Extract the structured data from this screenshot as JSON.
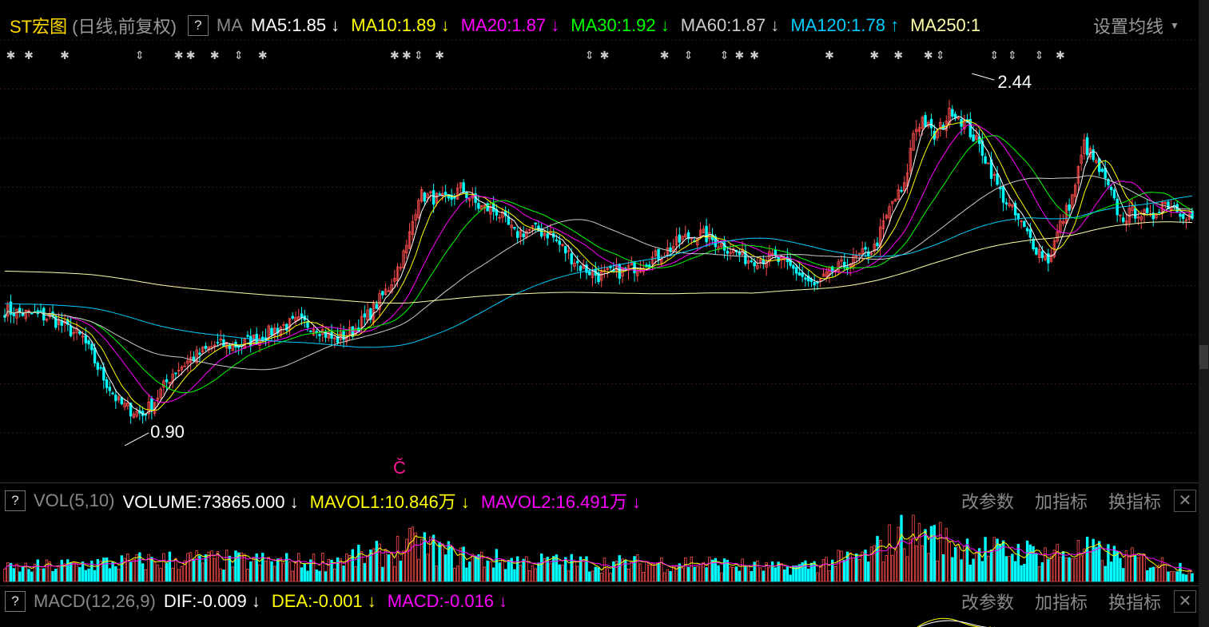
{
  "header": {
    "title": "ST宏图",
    "subtitle": "(日线,前复权)",
    "help": "?",
    "ma_label": "MA",
    "settings": "设置均线",
    "items": [
      {
        "label": "MA5:1.85",
        "arrow": "↓",
        "color": "#ffffff"
      },
      {
        "label": "MA10:1.89",
        "arrow": "↓",
        "color": "#ffff00"
      },
      {
        "label": "MA20:1.87",
        "arrow": "↓",
        "color": "#ff00ff"
      },
      {
        "label": "MA30:1.92",
        "arrow": "↓",
        "color": "#00ff00"
      },
      {
        "label": "MA60:1.87",
        "arrow": "↓",
        "color": "#cccccc"
      },
      {
        "label": "MA120:1.78",
        "arrow": "↑",
        "color": "#00ccff"
      },
      {
        "label": "MA250:1",
        "arrow": "",
        "color": "#ffffaa"
      }
    ]
  },
  "vol_header": {
    "help": "?",
    "name": "VOL(5,10)",
    "items": [
      {
        "label": "VOLUME:73865.000",
        "arrow": "↓",
        "color": "#ffffff"
      },
      {
        "label": "MAVOL1:10.846万",
        "arrow": "↓",
        "color": "#ffff00"
      },
      {
        "label": "MAVOL2:16.491万",
        "arrow": "↓",
        "color": "#ff00ff"
      }
    ],
    "buttons": [
      "改参数",
      "加指标",
      "换指标"
    ],
    "close": "✕"
  },
  "macd_header": {
    "help": "?",
    "name": "MACD(12,26,9)",
    "items": [
      {
        "label": "DIF:-0.009",
        "arrow": "↓",
        "color": "#ffffff"
      },
      {
        "label": "DEA:-0.001",
        "arrow": "↓",
        "color": "#ffff00"
      },
      {
        "label": "MACD:-0.016",
        "arrow": "↓",
        "color": "#ff00ff"
      }
    ],
    "buttons": [
      "改参数",
      "加指标",
      "换指标"
    ],
    "close": "✕"
  },
  "chart_data": {
    "type": "candlestick",
    "annotations": [
      {
        "label": "0.90",
        "type": "low"
      },
      {
        "label": "2.44",
        "type": "high"
      }
    ],
    "ylim": [
      0.72,
      2.62
    ],
    "grid": true,
    "anchors": [
      [
        0,
        1.45
      ],
      [
        15,
        1.42
      ],
      [
        26,
        1.33
      ],
      [
        32,
        1.18
      ],
      [
        38,
        1.05
      ],
      [
        42,
        1.02
      ],
      [
        46,
        1.0
      ],
      [
        50,
        1.06
      ],
      [
        56,
        1.18
      ],
      [
        62,
        1.24
      ],
      [
        70,
        1.3
      ],
      [
        78,
        1.3
      ],
      [
        86,
        1.34
      ],
      [
        92,
        1.38
      ],
      [
        98,
        1.4
      ],
      [
        104,
        1.38
      ],
      [
        110,
        1.32
      ],
      [
        116,
        1.36
      ],
      [
        122,
        1.44
      ],
      [
        128,
        1.55
      ],
      [
        134,
        1.72
      ],
      [
        138,
        1.95
      ],
      [
        142,
        1.94
      ],
      [
        148,
        1.92
      ],
      [
        152,
        1.98
      ],
      [
        158,
        1.9
      ],
      [
        164,
        1.88
      ],
      [
        170,
        1.78
      ],
      [
        176,
        1.8
      ],
      [
        182,
        1.78
      ],
      [
        186,
        1.72
      ],
      [
        192,
        1.64
      ],
      [
        198,
        1.6
      ],
      [
        206,
        1.62
      ],
      [
        212,
        1.65
      ],
      [
        220,
        1.7
      ],
      [
        226,
        1.76
      ],
      [
        232,
        1.78
      ],
      [
        240,
        1.73
      ],
      [
        248,
        1.67
      ],
      [
        256,
        1.68
      ],
      [
        264,
        1.62
      ],
      [
        270,
        1.55
      ],
      [
        276,
        1.62
      ],
      [
        282,
        1.66
      ],
      [
        290,
        1.72
      ],
      [
        296,
        1.92
      ],
      [
        300,
        1.98
      ],
      [
        303,
        2.22
      ],
      [
        306,
        2.28
      ],
      [
        310,
        2.2
      ],
      [
        316,
        2.32
      ],
      [
        320,
        2.26
      ],
      [
        326,
        2.14
      ],
      [
        332,
        1.96
      ],
      [
        338,
        1.84
      ],
      [
        344,
        1.72
      ],
      [
        348,
        1.67
      ],
      [
        352,
        1.82
      ],
      [
        356,
        1.94
      ],
      [
        360,
        2.17
      ],
      [
        364,
        2.08
      ],
      [
        368,
        1.98
      ],
      [
        372,
        1.85
      ],
      [
        378,
        1.88
      ],
      [
        382,
        1.84
      ],
      [
        386,
        1.92
      ],
      [
        390,
        1.9
      ],
      [
        396,
        1.85
      ]
    ],
    "volume_anchors": [
      [
        0,
        20
      ],
      [
        30,
        28
      ],
      [
        60,
        35
      ],
      [
        100,
        30
      ],
      [
        122,
        40
      ],
      [
        130,
        50
      ],
      [
        138,
        60
      ],
      [
        150,
        40
      ],
      [
        170,
        32
      ],
      [
        200,
        28
      ],
      [
        230,
        30
      ],
      [
        260,
        20
      ],
      [
        288,
        40
      ],
      [
        300,
        80
      ],
      [
        308,
        70
      ],
      [
        316,
        60
      ],
      [
        330,
        48
      ],
      [
        350,
        44
      ],
      [
        360,
        48
      ],
      [
        396,
        20
      ]
    ],
    "macd_visible": "partial"
  }
}
